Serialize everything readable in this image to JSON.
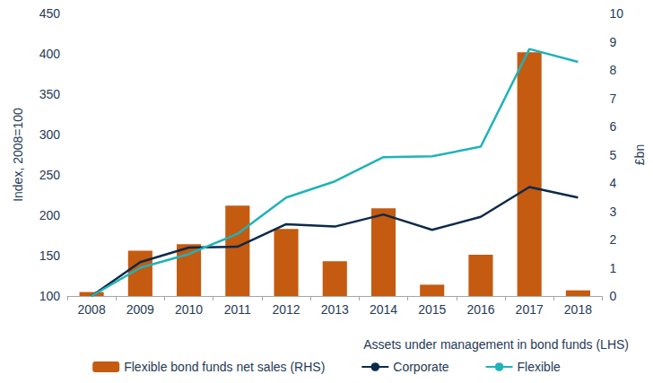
{
  "chart_data": {
    "type": "bar",
    "categories": [
      "2008",
      "2009",
      "2010",
      "2011",
      "2012",
      "2013",
      "2014",
      "2015",
      "2016",
      "2017",
      "2018"
    ],
    "ylabel": "Index, 2008=100",
    "y2label": "£bn",
    "annotation": "Assets under management in bond funds (LHS)",
    "ylim": [
      100,
      450
    ],
    "yticks": [
      100,
      150,
      200,
      250,
      300,
      350,
      400,
      450
    ],
    "y2lim": [
      0,
      10
    ],
    "y2ticks": [
      0,
      1,
      2,
      3,
      4,
      5,
      6,
      7,
      8,
      9,
      10
    ],
    "grid": false,
    "legend": "bottom",
    "series": [
      {
        "name": "Flexible bond funds net sales (RHS)",
        "type": "bar",
        "axis": "y2",
        "color": "#c55a11",
        "values": [
          0.14,
          1.6,
          1.83,
          3.2,
          2.37,
          1.23,
          3.1,
          0.4,
          1.46,
          8.63,
          0.2
        ]
      },
      {
        "name": "Corporate",
        "type": "line",
        "color": "#0b2a4a",
        "values": [
          100,
          142,
          160,
          161,
          189,
          186,
          201,
          182,
          198,
          235,
          222
        ]
      },
      {
        "name": "Flexible",
        "type": "line",
        "color": "#1fb3b8",
        "values": [
          100,
          135,
          152,
          177,
          222,
          242,
          272,
          273,
          285,
          406,
          390
        ]
      }
    ]
  }
}
